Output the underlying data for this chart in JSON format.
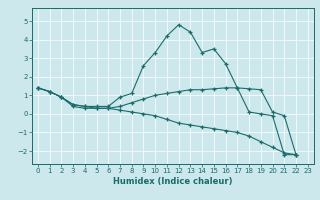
{
  "xlabel": "Humidex (Indice chaleur)",
  "background_color": "#cce8ec",
  "grid_color": "#ffffff",
  "line_color": "#1a6b6b",
  "xlim": [
    -0.5,
    23.5
  ],
  "ylim": [
    -2.7,
    5.7
  ],
  "yticks": [
    -2,
    -1,
    0,
    1,
    2,
    3,
    4,
    5
  ],
  "xticks": [
    0,
    1,
    2,
    3,
    4,
    5,
    6,
    7,
    8,
    9,
    10,
    11,
    12,
    13,
    14,
    15,
    16,
    17,
    18,
    19,
    20,
    21,
    22,
    23
  ],
  "series": [
    {
      "x": [
        0,
        1,
        2,
        3,
        4,
        5,
        6,
        7,
        8,
        9,
        10,
        11,
        12,
        13,
        14,
        15,
        16,
        17,
        18,
        19,
        20,
        21,
        22
      ],
      "y": [
        1.4,
        1.2,
        0.9,
        0.5,
        0.4,
        0.4,
        0.4,
        0.9,
        1.1,
        2.6,
        3.3,
        4.2,
        4.8,
        4.4,
        3.3,
        3.5,
        2.7,
        1.4,
        0.1,
        0.0,
        -0.1,
        -2.2,
        -2.2
      ]
    },
    {
      "x": [
        0,
        1,
        2,
        3,
        4,
        5,
        6,
        7,
        8,
        9,
        10,
        11,
        12,
        13,
        14,
        15,
        16,
        17,
        18,
        19,
        20,
        21,
        22
      ],
      "y": [
        1.4,
        1.2,
        0.9,
        0.5,
        0.4,
        0.3,
        0.3,
        0.4,
        0.6,
        0.8,
        1.0,
        1.1,
        1.2,
        1.3,
        1.3,
        1.35,
        1.4,
        1.4,
        1.35,
        1.3,
        0.1,
        -0.1,
        -2.2
      ]
    },
    {
      "x": [
        0,
        1,
        2,
        3,
        4,
        5,
        6,
        7,
        8,
        9,
        10,
        11,
        12,
        13,
        14,
        15,
        16,
        17,
        18,
        19,
        20,
        21,
        22
      ],
      "y": [
        1.4,
        1.2,
        0.9,
        0.4,
        0.3,
        0.3,
        0.3,
        0.2,
        0.1,
        0.0,
        -0.1,
        -0.3,
        -0.5,
        -0.6,
        -0.7,
        -0.8,
        -0.9,
        -1.0,
        -1.2,
        -1.5,
        -1.8,
        -2.1,
        -2.2
      ]
    }
  ]
}
